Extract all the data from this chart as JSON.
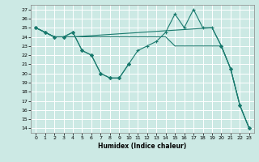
{
  "xlabel": "Humidex (Indice chaleur)",
  "bg_color": "#cce9e4",
  "grid_color": "#ffffff",
  "line_color": "#1a7a6e",
  "xlim": [
    -0.5,
    23.5
  ],
  "ylim": [
    13.5,
    27.5
  ],
  "yticks": [
    14,
    15,
    16,
    17,
    18,
    19,
    20,
    21,
    22,
    23,
    24,
    25,
    26,
    27
  ],
  "xticks": [
    0,
    1,
    2,
    3,
    4,
    5,
    6,
    7,
    8,
    9,
    10,
    11,
    12,
    13,
    14,
    15,
    16,
    17,
    18,
    19,
    20,
    21,
    22,
    23
  ],
  "series": [
    {
      "x": [
        0,
        1,
        2,
        3,
        4,
        19,
        20,
        21,
        22,
        23
      ],
      "y": [
        25,
        24.5,
        24,
        24,
        24,
        25,
        23,
        20.5,
        16.5,
        14
      ],
      "marker": null,
      "markersize": 0,
      "linewidth": 0.8
    },
    {
      "x": [
        0,
        1,
        2,
        3,
        4,
        5,
        10,
        11,
        12,
        13,
        14,
        15,
        16,
        17,
        18,
        19,
        20
      ],
      "y": [
        25,
        24.5,
        24,
        24,
        24,
        24,
        24,
        24,
        24,
        24,
        24,
        23,
        23,
        23,
        23,
        23,
        23
      ],
      "marker": null,
      "markersize": 0,
      "linewidth": 0.8
    },
    {
      "x": [
        0,
        1,
        2,
        3,
        4,
        5,
        6,
        7,
        8,
        9,
        10,
        11,
        12,
        13,
        14,
        15,
        16,
        17,
        18,
        19,
        20,
        21,
        22,
        23
      ],
      "y": [
        25,
        24.5,
        24,
        24,
        24.5,
        22.5,
        22,
        20,
        19.5,
        19.5,
        21,
        22.5,
        23,
        23.5,
        24.5,
        26.5,
        25,
        27,
        25,
        25,
        23,
        20.5,
        16.5,
        14
      ],
      "marker": "+",
      "markersize": 3,
      "linewidth": 0.8
    },
    {
      "x": [
        0,
        1,
        2,
        3,
        4,
        5,
        6,
        7,
        8,
        9,
        10
      ],
      "y": [
        25,
        24.5,
        24,
        24,
        24.5,
        22.5,
        22,
        20,
        19.5,
        19.5,
        21
      ],
      "marker": "D",
      "markersize": 2,
      "linewidth": 0.8
    },
    {
      "x": [
        20,
        21,
        22,
        23
      ],
      "y": [
        23,
        20.5,
        16.5,
        14
      ],
      "marker": "D",
      "markersize": 2,
      "linewidth": 0.8
    }
  ]
}
